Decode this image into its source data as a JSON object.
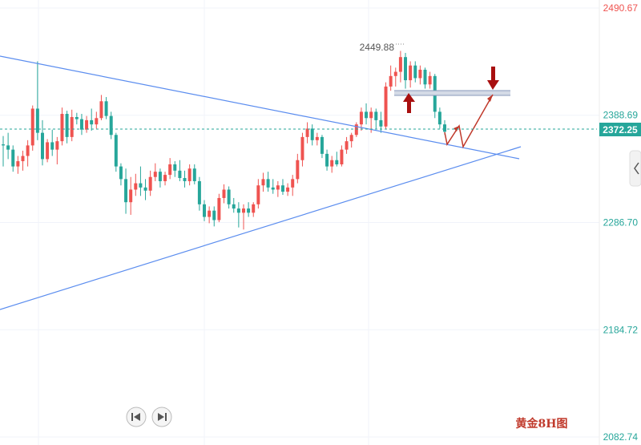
{
  "chart_data": {
    "type": "candlestick",
    "title": "",
    "watermark": "黄金8H图",
    "y_axis": {
      "ticks": [
        "2490.67",
        "2388.69",
        "2286.70",
        "2184.72",
        "2082.74"
      ],
      "tick_values": [
        2490.67,
        2388.69,
        2286.7,
        2184.72,
        2082.74
      ],
      "range": [
        2082.74,
        2490.67
      ]
    },
    "current_price": {
      "label": "2372.25",
      "value": 2372.25
    },
    "high_marker": {
      "label": "2449.88",
      "value": 2449.88
    },
    "colors": {
      "up": "#ef5350",
      "down": "#26a69a",
      "trendline": "#5b8def",
      "projection": "#c0392b",
      "arrow": "#a80f0f",
      "price_tag": "#26a69a",
      "axis_text": "#26a69a",
      "top_axis_text": "#ef5350"
    },
    "candles": [
      {
        "o": 2361,
        "h": 2369,
        "l": 2340,
        "c": 2360
      },
      {
        "o": 2360,
        "h": 2372,
        "l": 2347,
        "c": 2356
      },
      {
        "o": 2356,
        "h": 2360,
        "l": 2335,
        "c": 2340
      },
      {
        "o": 2340,
        "h": 2350,
        "l": 2333,
        "c": 2345
      },
      {
        "o": 2345,
        "h": 2355,
        "l": 2336,
        "c": 2350
      },
      {
        "o": 2350,
        "h": 2365,
        "l": 2340,
        "c": 2360
      },
      {
        "o": 2360,
        "h": 2398,
        "l": 2355,
        "c": 2395
      },
      {
        "o": 2395,
        "h": 2440,
        "l": 2365,
        "c": 2372
      },
      {
        "o": 2372,
        "h": 2384,
        "l": 2341,
        "c": 2347
      },
      {
        "o": 2347,
        "h": 2366,
        "l": 2344,
        "c": 2363
      },
      {
        "o": 2363,
        "h": 2375,
        "l": 2350,
        "c": 2356
      },
      {
        "o": 2356,
        "h": 2368,
        "l": 2342,
        "c": 2364
      },
      {
        "o": 2364,
        "h": 2396,
        "l": 2360,
        "c": 2390
      },
      {
        "o": 2390,
        "h": 2393,
        "l": 2362,
        "c": 2368
      },
      {
        "o": 2368,
        "h": 2394,
        "l": 2364,
        "c": 2387
      },
      {
        "o": 2387,
        "h": 2391,
        "l": 2380,
        "c": 2385
      },
      {
        "o": 2385,
        "h": 2390,
        "l": 2370,
        "c": 2375
      },
      {
        "o": 2375,
        "h": 2388,
        "l": 2372,
        "c": 2384
      },
      {
        "o": 2384,
        "h": 2395,
        "l": 2374,
        "c": 2380
      },
      {
        "o": 2380,
        "h": 2392,
        "l": 2376,
        "c": 2386
      },
      {
        "o": 2386,
        "h": 2408,
        "l": 2384,
        "c": 2402
      },
      {
        "o": 2402,
        "h": 2406,
        "l": 2385,
        "c": 2388
      },
      {
        "o": 2388,
        "h": 2392,
        "l": 2366,
        "c": 2370
      },
      {
        "o": 2370,
        "h": 2372,
        "l": 2335,
        "c": 2340
      },
      {
        "o": 2340,
        "h": 2343,
        "l": 2322,
        "c": 2328
      },
      {
        "o": 2328,
        "h": 2338,
        "l": 2295,
        "c": 2306
      },
      {
        "o": 2306,
        "h": 2330,
        "l": 2294,
        "c": 2318
      },
      {
        "o": 2318,
        "h": 2333,
        "l": 2312,
        "c": 2324
      },
      {
        "o": 2324,
        "h": 2340,
        "l": 2312,
        "c": 2320
      },
      {
        "o": 2320,
        "h": 2328,
        "l": 2308,
        "c": 2317
      },
      {
        "o": 2317,
        "h": 2336,
        "l": 2312,
        "c": 2330
      },
      {
        "o": 2330,
        "h": 2343,
        "l": 2326,
        "c": 2335
      },
      {
        "o": 2335,
        "h": 2338,
        "l": 2320,
        "c": 2326
      },
      {
        "o": 2326,
        "h": 2335,
        "l": 2322,
        "c": 2332
      },
      {
        "o": 2332,
        "h": 2348,
        "l": 2328,
        "c": 2342
      },
      {
        "o": 2342,
        "h": 2345,
        "l": 2330,
        "c": 2336
      },
      {
        "o": 2336,
        "h": 2346,
        "l": 2326,
        "c": 2329
      },
      {
        "o": 2329,
        "h": 2336,
        "l": 2320,
        "c": 2326
      },
      {
        "o": 2326,
        "h": 2342,
        "l": 2322,
        "c": 2338
      },
      {
        "o": 2338,
        "h": 2342,
        "l": 2323,
        "c": 2326
      },
      {
        "o": 2326,
        "h": 2330,
        "l": 2298,
        "c": 2304
      },
      {
        "o": 2304,
        "h": 2308,
        "l": 2288,
        "c": 2292
      },
      {
        "o": 2292,
        "h": 2302,
        "l": 2286,
        "c": 2298
      },
      {
        "o": 2298,
        "h": 2302,
        "l": 2283,
        "c": 2289
      },
      {
        "o": 2289,
        "h": 2314,
        "l": 2287,
        "c": 2310
      },
      {
        "o": 2310,
        "h": 2323,
        "l": 2305,
        "c": 2318
      },
      {
        "o": 2318,
        "h": 2321,
        "l": 2300,
        "c": 2304
      },
      {
        "o": 2304,
        "h": 2310,
        "l": 2296,
        "c": 2300
      },
      {
        "o": 2300,
        "h": 2306,
        "l": 2282,
        "c": 2296
      },
      {
        "o": 2296,
        "h": 2304,
        "l": 2280,
        "c": 2300
      },
      {
        "o": 2300,
        "h": 2306,
        "l": 2292,
        "c": 2296
      },
      {
        "o": 2296,
        "h": 2306,
        "l": 2292,
        "c": 2304
      },
      {
        "o": 2304,
        "h": 2328,
        "l": 2300,
        "c": 2322
      },
      {
        "o": 2322,
        "h": 2334,
        "l": 2316,
        "c": 2328
      },
      {
        "o": 2328,
        "h": 2335,
        "l": 2316,
        "c": 2320
      },
      {
        "o": 2320,
        "h": 2328,
        "l": 2314,
        "c": 2318
      },
      {
        "o": 2318,
        "h": 2326,
        "l": 2311,
        "c": 2322
      },
      {
        "o": 2322,
        "h": 2328,
        "l": 2313,
        "c": 2316
      },
      {
        "o": 2316,
        "h": 2324,
        "l": 2312,
        "c": 2320
      },
      {
        "o": 2320,
        "h": 2332,
        "l": 2312,
        "c": 2328
      },
      {
        "o": 2328,
        "h": 2352,
        "l": 2324,
        "c": 2346
      },
      {
        "o": 2346,
        "h": 2372,
        "l": 2340,
        "c": 2368
      },
      {
        "o": 2368,
        "h": 2382,
        "l": 2362,
        "c": 2376
      },
      {
        "o": 2376,
        "h": 2380,
        "l": 2360,
        "c": 2365
      },
      {
        "o": 2365,
        "h": 2372,
        "l": 2360,
        "c": 2368
      },
      {
        "o": 2368,
        "h": 2370,
        "l": 2348,
        "c": 2352
      },
      {
        "o": 2352,
        "h": 2356,
        "l": 2336,
        "c": 2340
      },
      {
        "o": 2340,
        "h": 2350,
        "l": 2334,
        "c": 2346
      },
      {
        "o": 2346,
        "h": 2354,
        "l": 2340,
        "c": 2342
      },
      {
        "o": 2342,
        "h": 2360,
        "l": 2340,
        "c": 2356
      },
      {
        "o": 2356,
        "h": 2368,
        "l": 2352,
        "c": 2364
      },
      {
        "o": 2364,
        "h": 2372,
        "l": 2358,
        "c": 2370
      },
      {
        "o": 2370,
        "h": 2382,
        "l": 2368,
        "c": 2380
      },
      {
        "o": 2380,
        "h": 2396,
        "l": 2374,
        "c": 2392
      },
      {
        "o": 2392,
        "h": 2400,
        "l": 2380,
        "c": 2386
      },
      {
        "o": 2386,
        "h": 2396,
        "l": 2372,
        "c": 2392
      },
      {
        "o": 2392,
        "h": 2395,
        "l": 2376,
        "c": 2384
      },
      {
        "o": 2384,
        "h": 2392,
        "l": 2372,
        "c": 2378
      },
      {
        "o": 2378,
        "h": 2420,
        "l": 2376,
        "c": 2416
      },
      {
        "o": 2416,
        "h": 2436,
        "l": 2412,
        "c": 2426
      },
      {
        "o": 2426,
        "h": 2434,
        "l": 2416,
        "c": 2430
      },
      {
        "o": 2430,
        "h": 2449.88,
        "l": 2420,
        "c": 2444
      },
      {
        "o": 2444,
        "h": 2448,
        "l": 2414,
        "c": 2422
      },
      {
        "o": 2422,
        "h": 2440,
        "l": 2415,
        "c": 2436
      },
      {
        "o": 2436,
        "h": 2440,
        "l": 2420,
        "c": 2424
      },
      {
        "o": 2424,
        "h": 2436,
        "l": 2418,
        "c": 2432
      },
      {
        "o": 2432,
        "h": 2434,
        "l": 2414,
        "c": 2418
      },
      {
        "o": 2418,
        "h": 2430,
        "l": 2414,
        "c": 2426
      },
      {
        "o": 2426,
        "h": 2428,
        "l": 2386,
        "c": 2392
      },
      {
        "o": 2392,
        "h": 2396,
        "l": 2376,
        "c": 2380
      },
      {
        "o": 2380,
        "h": 2384,
        "l": 2370,
        "c": 2373
      }
    ]
  },
  "controls": {
    "prev_label": "previous",
    "next_label": "next"
  }
}
